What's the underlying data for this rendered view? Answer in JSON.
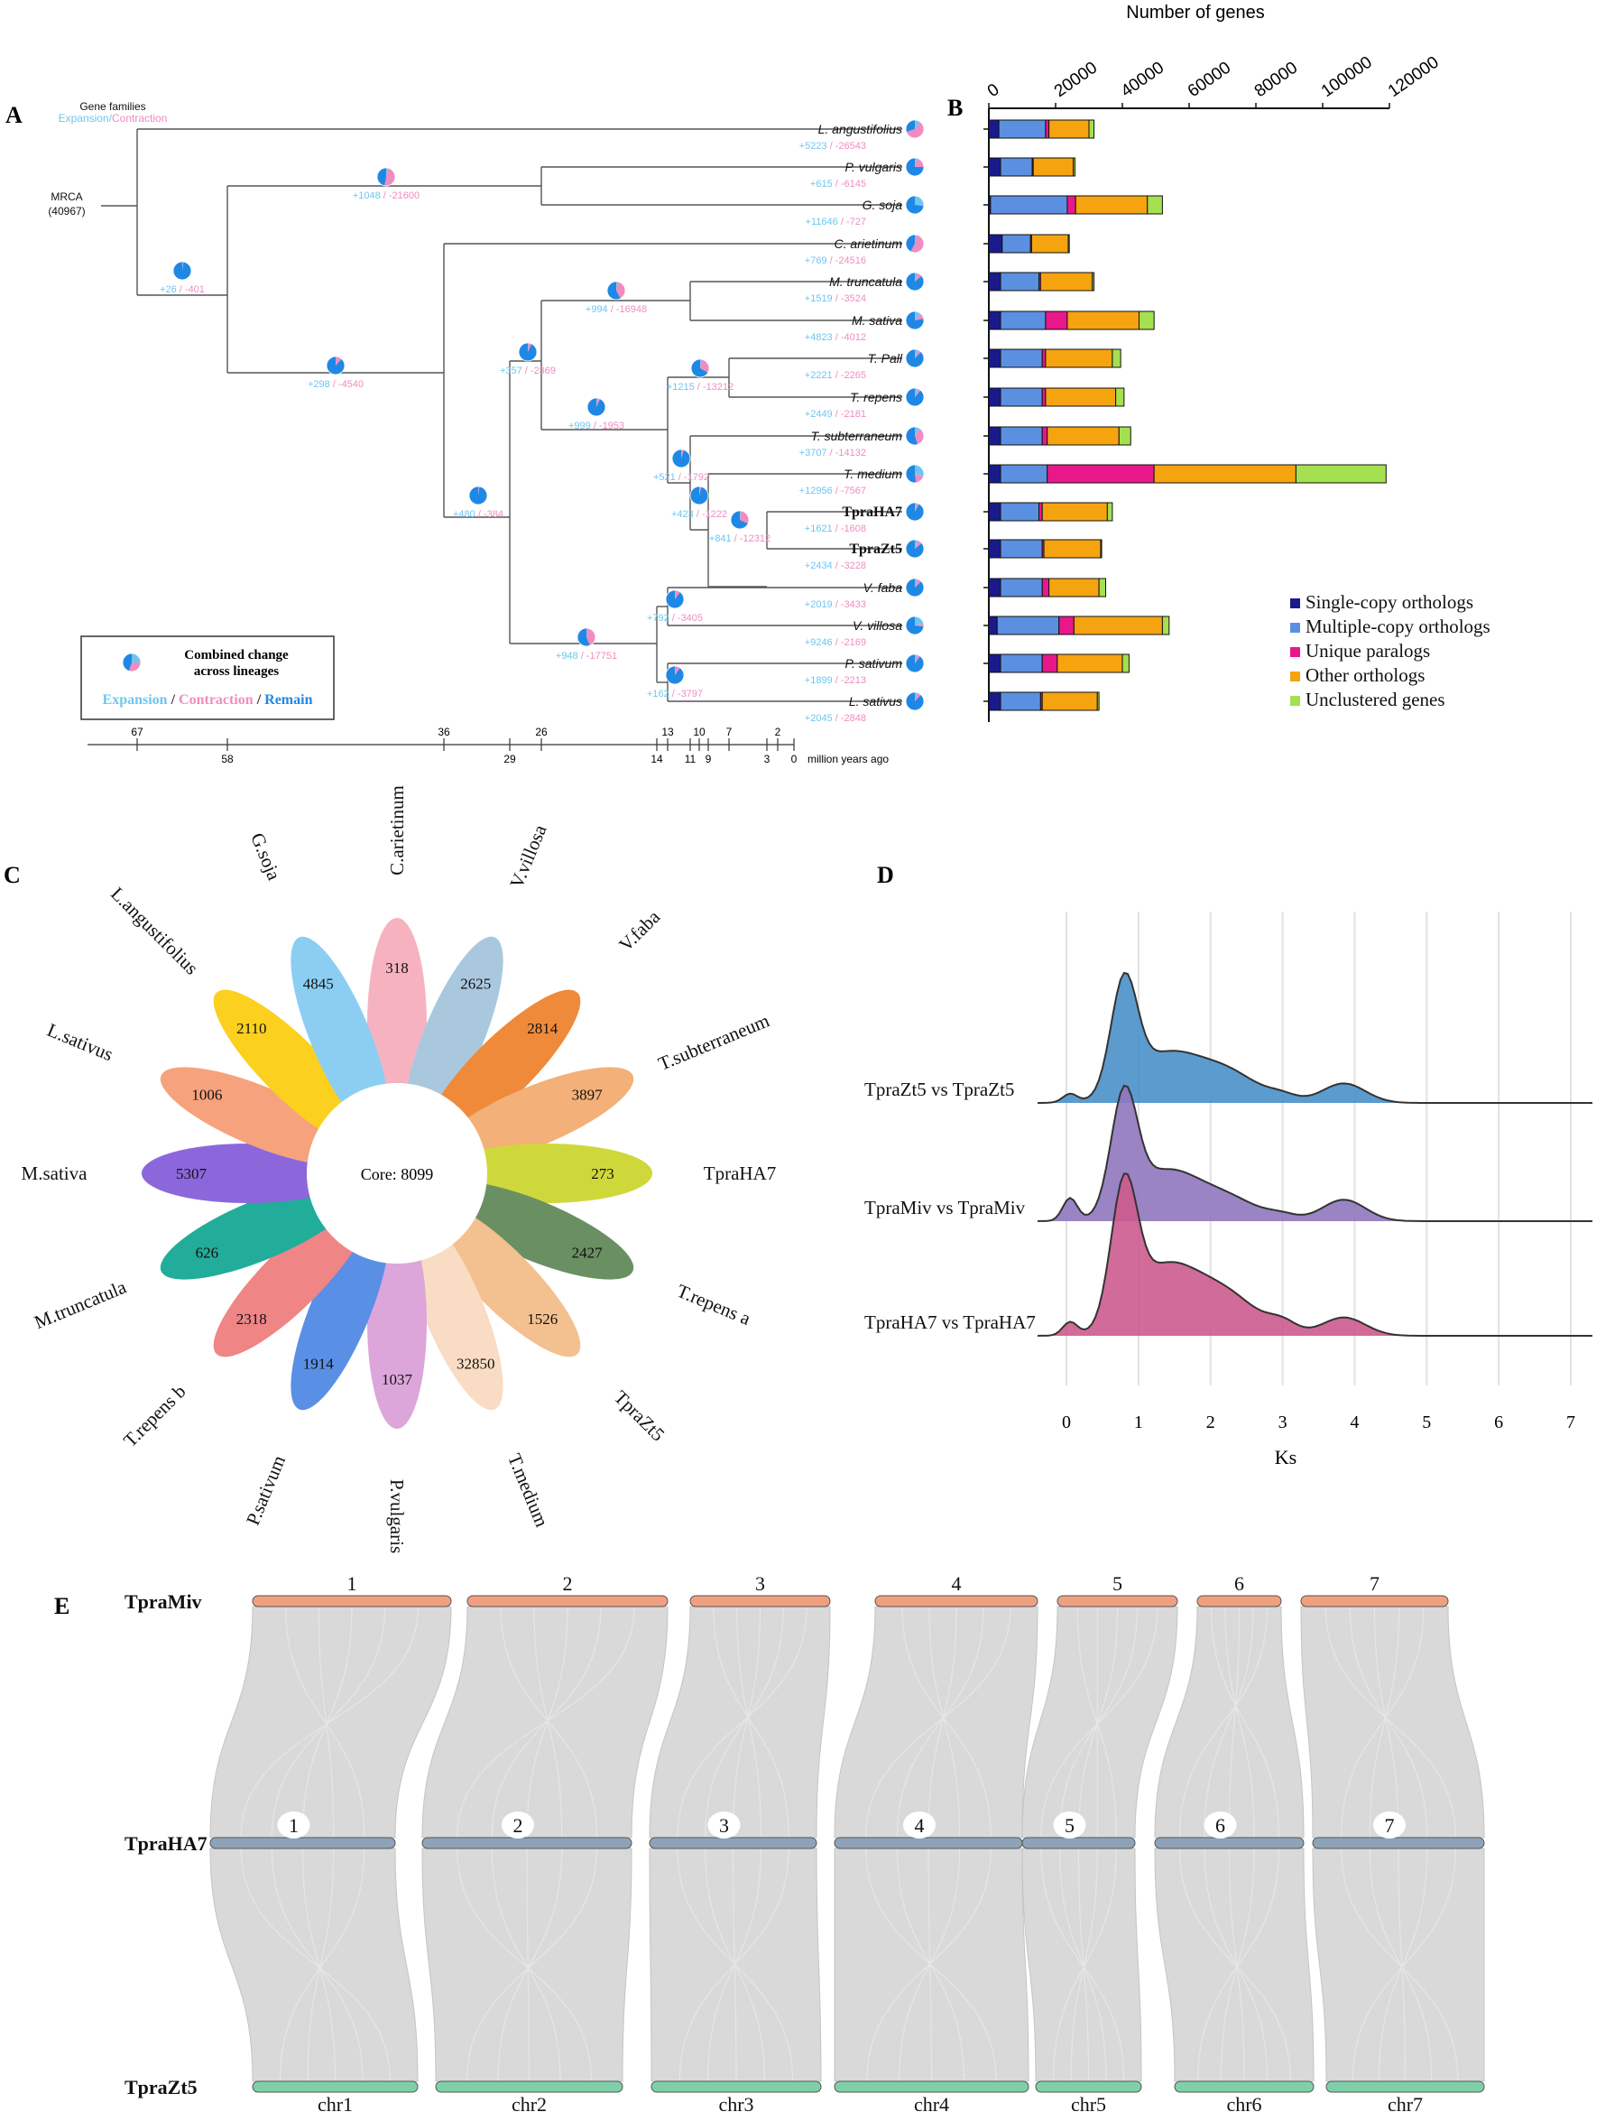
{
  "panels": {
    "A": "A",
    "B": "B",
    "C": "C",
    "D": "D",
    "E": "E"
  },
  "tree": {
    "legend_top": {
      "title": "Gene families",
      "expansion": "Expansion",
      "sep": "/",
      "contraction": "Contraction"
    },
    "root": {
      "label": "MRCA",
      "count": "(40967)"
    },
    "taxa": [
      {
        "name": "L. angustifolius",
        "plus": "+5223",
        "minus": "-26543",
        "bold": false,
        "exp": 0.1,
        "con": 0.6
      },
      {
        "name": "P. vulgaris",
        "plus": "+615",
        "minus": "-6145",
        "bold": false,
        "exp": 0.05,
        "con": 0.2
      },
      {
        "name": "G. soja",
        "plus": "+11646",
        "minus": "-727",
        "bold": false,
        "exp": 0.25,
        "con": 0.02
      },
      {
        "name": "C. arietinum",
        "plus": "+769",
        "minus": "-24516",
        "bold": false,
        "exp": 0.03,
        "con": 0.55
      },
      {
        "name": "M. truncatula",
        "plus": "+1519",
        "minus": "-3524",
        "bold": false,
        "exp": 0.05,
        "con": 0.09
      },
      {
        "name": "M. sativa",
        "plus": "+4823",
        "minus": "-4012",
        "bold": false,
        "exp": 0.12,
        "con": 0.1
      },
      {
        "name": "T. Pall",
        "plus": "+2221",
        "minus": "-2265",
        "bold": false,
        "exp": 0.06,
        "con": 0.06
      },
      {
        "name": "T. repens",
        "plus": "+2449",
        "minus": "-2181",
        "bold": false,
        "exp": 0.06,
        "con": 0.05
      },
      {
        "name": "T. subterraneum",
        "plus": "+3707",
        "minus": "-14132",
        "bold": false,
        "exp": 0.1,
        "con": 0.35
      },
      {
        "name": "T. medium",
        "plus": "+12956",
        "minus": "-7567",
        "bold": false,
        "exp": 0.3,
        "con": 0.18
      },
      {
        "name": "TpraHA7",
        "plus": "+1621",
        "minus": "-1608",
        "bold": true,
        "exp": 0.04,
        "con": 0.04
      },
      {
        "name": "TpraZt5",
        "plus": "+2434",
        "minus": "-3228",
        "bold": true,
        "exp": 0.06,
        "con": 0.08
      },
      {
        "name": "V. faba",
        "plus": "+2019",
        "minus": "-3433",
        "bold": false,
        "exp": 0.05,
        "con": 0.08
      },
      {
        "name": "V. villosa",
        "plus": "+9246",
        "minus": "-2169",
        "bold": false,
        "exp": 0.22,
        "con": 0.05
      },
      {
        "name": "P. sativum",
        "plus": "+1899",
        "minus": "-2213",
        "bold": false,
        "exp": 0.05,
        "con": 0.05
      },
      {
        "name": "L. sativus",
        "plus": "+2045",
        "minus": "-2848",
        "bold": false,
        "exp": 0.05,
        "con": 0.07
      }
    ],
    "nodes": [
      {
        "id": "n1",
        "plus": "+26",
        "minus": "-401",
        "exp": 0.01,
        "con": 0.01
      },
      {
        "id": "n2",
        "plus": "+1048",
        "minus": "-21600",
        "exp": 0.03,
        "con": 0.5
      },
      {
        "id": "n3",
        "plus": "+298",
        "minus": "-4540",
        "exp": 0.01,
        "con": 0.11
      },
      {
        "id": "n4",
        "plus": "+480",
        "minus": "-384",
        "exp": 0.01,
        "con": 0.01
      },
      {
        "id": "n5",
        "plus": "+357",
        "minus": "-2369",
        "exp": 0.01,
        "con": 0.06
      },
      {
        "id": "n6",
        "plus": "+994",
        "minus": "-16948",
        "exp": 0.02,
        "con": 0.4
      },
      {
        "id": "n7",
        "plus": "+999",
        "minus": "-1953",
        "exp": 0.02,
        "con": 0.05
      },
      {
        "id": "n8",
        "plus": "+1215",
        "minus": "-13212",
        "exp": 0.03,
        "con": 0.3
      },
      {
        "id": "n9",
        "plus": "+521",
        "minus": "-1792",
        "exp": 0.01,
        "con": 0.04
      },
      {
        "id": "n10",
        "plus": "+423",
        "minus": "-1222",
        "exp": 0.01,
        "con": 0.03
      },
      {
        "id": "n11",
        "plus": "+841",
        "minus": "-12312",
        "exp": 0.02,
        "con": 0.3
      },
      {
        "id": "n12",
        "plus": "+948",
        "minus": "-17751",
        "exp": 0.02,
        "con": 0.42
      },
      {
        "id": "n13",
        "plus": "+792",
        "minus": "-3405",
        "exp": 0.02,
        "con": 0.08
      },
      {
        "id": "n14",
        "plus": "+162",
        "minus": "-3797",
        "exp": 0.01,
        "con": 0.09
      }
    ],
    "legend": {
      "title_line1": "Combined change",
      "title_line2": "across lineages",
      "expansion": "Expansion",
      "contraction": "Contraction",
      "remain": "Remain",
      "sep": "/"
    },
    "timescale": {
      "top_ticks": [
        "67",
        "36",
        "26",
        "13",
        "10",
        "7",
        "2"
      ],
      "bottom_ticks": [
        "58",
        "29",
        "14",
        "11",
        "9",
        "3",
        "0"
      ],
      "unit": "million years ago"
    },
    "colors": {
      "expansion": "#6ec6f0",
      "contraction": "#f08cc0",
      "remain": "#1f88e5"
    }
  },
  "chart_data": {
    "type": "bar",
    "orientation": "horizontal-stacked",
    "title": "Number of genes",
    "xlim": [
      0,
      120000
    ],
    "ticks": [
      "0",
      "20000",
      "40000",
      "60000",
      "80000",
      "100000",
      "120000"
    ],
    "categories": [
      "L. angustifolius",
      "P. vulgaris",
      "G. soja",
      "C. arietinum",
      "M. truncatula",
      "M. sativa",
      "T. Pall",
      "T. repens",
      "T. subterraneum",
      "T. medium",
      "TpraHA7",
      "TpraZt5",
      "V. faba",
      "V. villosa",
      "P. sativum",
      "L. sativus"
    ],
    "series": [
      {
        "name": "Single-copy orthologs",
        "color": "#1a1a8c",
        "values": [
          3000,
          3500,
          500,
          4000,
          3500,
          3500,
          3500,
          3500,
          3500,
          3500,
          3500,
          3500,
          3500,
          2500,
          3500,
          3500
        ]
      },
      {
        "name": "Multiple-copy orthologs",
        "color": "#5b8fdf",
        "values": [
          14000,
          9500,
          23000,
          8500,
          11500,
          13500,
          12500,
          12500,
          12500,
          14000,
          11500,
          12500,
          12500,
          18500,
          12500,
          12000
        ]
      },
      {
        "name": "Unique paralogs",
        "color": "#e8188a",
        "values": [
          1000,
          300,
          2500,
          300,
          500,
          6500,
          1000,
          1000,
          1500,
          32000,
          1000,
          500,
          2000,
          4500,
          4500,
          500
        ]
      },
      {
        "name": "Other orthologs",
        "color": "#f5a30f",
        "values": [
          12000,
          12000,
          21500,
          11000,
          15500,
          21500,
          20000,
          21000,
          21500,
          42500,
          19500,
          17000,
          15000,
          26500,
          19500,
          16500
        ]
      },
      {
        "name": "Unclustered genes",
        "color": "#a4e04f",
        "values": [
          1500,
          500,
          4500,
          300,
          500,
          4500,
          2500,
          2500,
          3500,
          27000,
          1500,
          300,
          2000,
          2000,
          2000,
          500
        ]
      }
    ]
  },
  "flower": {
    "core_label": "Core: 8099",
    "petals": [
      {
        "name": "C.arietinum",
        "value": "318",
        "color": "#f7b2c0"
      },
      {
        "name": "V.villosa",
        "value": "2625",
        "color": "#a9c8de"
      },
      {
        "name": "V.faba",
        "value": "2814",
        "color": "#ef8a3a"
      },
      {
        "name": "T.subterraneum",
        "value": "3897",
        "color": "#f3b078"
      },
      {
        "name": "TpraHA7",
        "value": "273",
        "color": "#cfd83a"
      },
      {
        "name": "T.repens a",
        "value": "2427",
        "color": "#6a8f62"
      },
      {
        "name": "TpraZt5",
        "value": "1526",
        "color": "#f3c08f"
      },
      {
        "name": "T.medium",
        "value": "32850",
        "color": "#f9dcc4"
      },
      {
        "name": "P.vulgaris",
        "value": "1037",
        "color": "#dca6da"
      },
      {
        "name": "P.sativum",
        "value": "1914",
        "color": "#5a8fe6"
      },
      {
        "name": "T.repens b",
        "value": "2318",
        "color": "#ef8585"
      },
      {
        "name": "M.truncatula",
        "value": "626",
        "color": "#21ad9a"
      },
      {
        "name": "M.sativa",
        "value": "5307",
        "color": "#8c67dc"
      },
      {
        "name": "L.sativus",
        "value": "1006",
        "color": "#f6a27c"
      },
      {
        "name": "L.angustifolius",
        "value": "2110",
        "color": "#fbd01e"
      },
      {
        "name": "G.soja",
        "value": "4845",
        "color": "#8ccef2"
      }
    ]
  },
  "ridge": {
    "xlabel": "Ks",
    "ticks": [
      "0",
      "1",
      "2",
      "3",
      "4",
      "5",
      "6",
      "7"
    ],
    "series": [
      {
        "name": "TpraZt5 vs TpraZt5",
        "color": "#4a90c8",
        "peak": 0.8
      },
      {
        "name": "TpraMiv vs TpraMiv",
        "color": "#8f77bd",
        "peak": 0.8
      },
      {
        "name": "TpraHA7 vs TpraHA7",
        "color": "#cc5b8e",
        "peak": 0.8
      }
    ]
  },
  "synteny": {
    "genomes": [
      {
        "name": "TpraMiv",
        "color": "#f0a080",
        "labels": [
          "1",
          "2",
          "3",
          "4",
          "5",
          "6",
          "7"
        ]
      },
      {
        "name": "TpraHA7",
        "color": "#8fa3b8",
        "labels": [
          "1",
          "2",
          "3",
          "4",
          "5",
          "6",
          "7"
        ]
      },
      {
        "name": "TpraZt5",
        "color": "#7fd0a8",
        "labels": [
          "chr1",
          "chr2",
          "chr3",
          "chr4",
          "chr5",
          "chr6",
          "chr7"
        ]
      }
    ]
  }
}
